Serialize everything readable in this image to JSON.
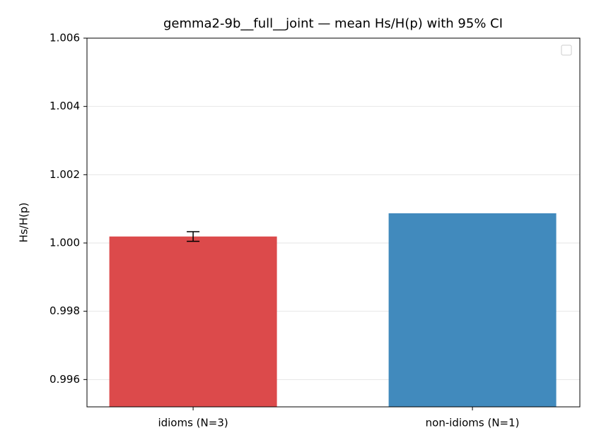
{
  "chart_data": {
    "type": "bar",
    "title": "gemma2-9b__full__joint — mean Hs/H(p) with 95% CI",
    "y_label": "Hs/H(p)",
    "categories": [
      "idioms (N=3)",
      "non-idioms (N=1)"
    ],
    "values": [
      1.00019,
      1.00087
    ],
    "errors": [
      0.00014,
      null
    ],
    "colors": [
      "#dc4a4b",
      "#418abd"
    ],
    "ylim": [
      0.9952,
      1.006
    ],
    "yticks": [
      0.996,
      0.998,
      {
        "value": 1,
        "label": "1.000"
      },
      1.002,
      1.004,
      1.006
    ],
    "grid": true
  }
}
